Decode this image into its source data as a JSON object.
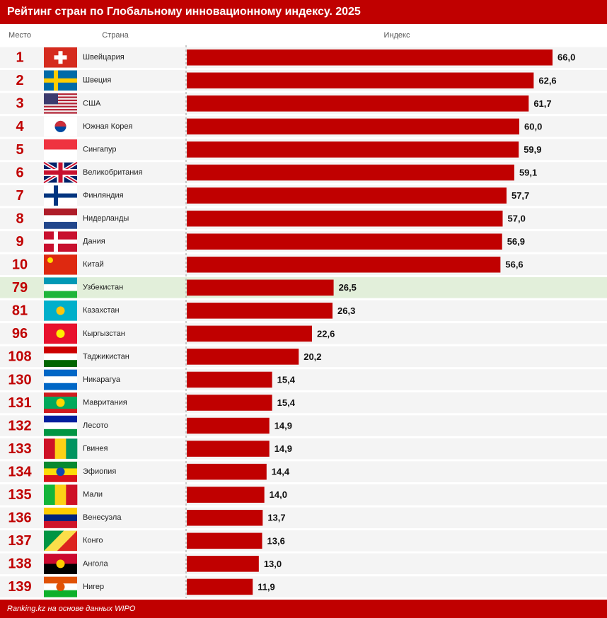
{
  "chart_data": {
    "type": "bar",
    "title": "Рейтинг стран по Глобальному инновационному индексу. 2025",
    "rank_header": "Место",
    "country_header": "Страна",
    "value_header": "Индекс",
    "source": "Ranking.kz на основе данных WIPO",
    "ranks": [
      1,
      2,
      3,
      4,
      5,
      6,
      7,
      8,
      9,
      10,
      79,
      81,
      96,
      108,
      130,
      131,
      132,
      133,
      134,
      135,
      136,
      137,
      138,
      139
    ],
    "categories": [
      "Швейцария",
      "Швеция",
      "США",
      "Южная Корея",
      "Сингапур",
      "Великобритания",
      "Финляндия",
      "Нидерланды",
      "Дания",
      "Китай",
      "Узбекистан",
      "Казахстан",
      "Кыргызстан",
      "Таджикистан",
      "Никарагуа",
      "Мавритания",
      "Лесото",
      "Гвинея",
      "Эфиопия",
      "Мали",
      "Венесуэла",
      "Конго",
      "Ангола",
      "Нигер"
    ],
    "values": [
      66.0,
      62.6,
      61.7,
      60.0,
      59.9,
      59.1,
      57.7,
      57.0,
      56.9,
      56.6,
      26.5,
      26.3,
      22.6,
      20.2,
      15.4,
      15.4,
      14.9,
      14.9,
      14.4,
      14.0,
      13.7,
      13.6,
      13.0,
      11.9
    ],
    "value_labels": [
      "66,0",
      "62,6",
      "61,7",
      "60,0",
      "59,9",
      "59,1",
      "57,7",
      "57,0",
      "56,9",
      "56,6",
      "26,5",
      "26,3",
      "22,6",
      "20,2",
      "15,4",
      "15,4",
      "14,9",
      "14,9",
      "14,4",
      "14,0",
      "13,7",
      "13,6",
      "13,0",
      "11,9"
    ],
    "color": "#c00000",
    "xlim": [
      0,
      66
    ]
  }
}
